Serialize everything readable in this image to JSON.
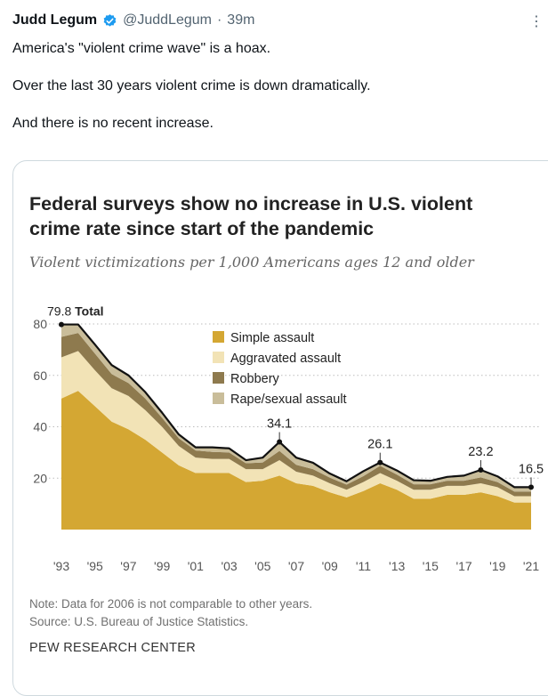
{
  "tweet": {
    "author_name": "Judd Legum",
    "handle": "@JuddLegum",
    "separator": "·",
    "time": "39m",
    "more_icon": "ellipsis-icon",
    "verified_icon": "verified-badge-icon",
    "text": [
      "America's \"violent crime wave\" is a hoax.",
      "Over the last 30 years violent crime is down dramatically.",
      "And there is no recent increase."
    ]
  },
  "card": {
    "title": "Federal surveys show no increase in U.S. violent crime rate since start of the pandemic",
    "subtitle": "Violent victimizations per 1,000 Americans ages 12 and older",
    "note": "Note: Data for 2006 is not comparable to other years.",
    "source": "Source: U.S. Bureau of Justice Statistics.",
    "brand": "PEW RESEARCH CENTER"
  },
  "chart_data": {
    "type": "area",
    "stacked": true,
    "x": [
      1993,
      1994,
      1995,
      1996,
      1997,
      1998,
      1999,
      2000,
      2001,
      2002,
      2003,
      2004,
      2005,
      2006,
      2007,
      2008,
      2009,
      2010,
      2011,
      2012,
      2013,
      2014,
      2015,
      2016,
      2017,
      2018,
      2019,
      2020,
      2021
    ],
    "series": [
      {
        "name": "Simple assault",
        "color": "#d4a733",
        "values": [
          51,
          54,
          48,
          42,
          39,
          35,
          30,
          25,
          22,
          22,
          22,
          18.5,
          19,
          21,
          18,
          17,
          14.5,
          12.5,
          15,
          18,
          15.5,
          12,
          12,
          13.5,
          13.5,
          14.5,
          13,
          10.5,
          10.5
        ]
      },
      {
        "name": "Aggravated assault",
        "color": "#f2e3b6",
        "values": [
          16,
          15.5,
          14,
          13,
          13,
          11.5,
          10,
          7.5,
          6,
          5.5,
          5.5,
          5,
          4.5,
          6,
          4.5,
          4,
          3.5,
          3,
          3.5,
          4,
          3.5,
          3.5,
          3.5,
          3.5,
          3.5,
          3.5,
          3.5,
          2.5,
          2.5
        ]
      },
      {
        "name": "Robbery",
        "color": "#8e7a4e",
        "values": [
          8,
          7,
          6.5,
          5.5,
          5,
          4.5,
          3.5,
          3,
          2.8,
          2.7,
          2.5,
          2.3,
          2.6,
          3.6,
          2.7,
          2.5,
          2.2,
          2,
          2.3,
          2.8,
          2.4,
          2.1,
          2.1,
          2,
          2,
          2.3,
          2,
          1.8,
          1.8
        ]
      },
      {
        "name": "Rape/sexual assault",
        "color": "#c9bd9a",
        "values": [
          4.8,
          3.3,
          3.5,
          3.5,
          3,
          2.5,
          2,
          1.5,
          1.2,
          1.8,
          1.6,
          1.2,
          1.9,
          3.5,
          2.8,
          2.5,
          1.6,
          1.3,
          1.9,
          1.3,
          1.6,
          1.6,
          1.4,
          1.5,
          2,
          2.9,
          2.2,
          1.7,
          1.7
        ]
      }
    ],
    "total": {
      "name": "Total",
      "color": "#111111",
      "values": [
        79.8,
        79.8,
        72,
        64,
        60,
        53.5,
        45.5,
        37,
        32,
        32,
        31.6,
        27,
        28,
        34.1,
        28,
        26,
        21.8,
        18.8,
        22.7,
        26.1,
        23,
        19.2,
        19,
        20.5,
        21,
        23.2,
        20.7,
        16.5,
        16.5
      ]
    },
    "annotations": [
      {
        "x": 1993,
        "label": "79.8",
        "suffix": "Total"
      },
      {
        "x": 2006,
        "label": "34.1"
      },
      {
        "x": 2012,
        "label": "26.1"
      },
      {
        "x": 2018,
        "label": "23.2"
      },
      {
        "x": 2021,
        "label": "16.5"
      }
    ],
    "y_ticks": [
      20,
      40,
      60,
      80
    ],
    "x_ticks": [
      "'93",
      "'95",
      "'97",
      "'99",
      "'01",
      "'03",
      "'05",
      "'07",
      "'09",
      "'11",
      "'13",
      "'15",
      "'17",
      "'19",
      "'21"
    ],
    "x_tick_years": [
      1993,
      1995,
      1997,
      1999,
      2001,
      2003,
      2005,
      2007,
      2009,
      2011,
      2013,
      2015,
      2017,
      2019,
      2021
    ],
    "ylim": [
      0,
      80
    ],
    "grid": "horizontal dotted",
    "legend_placement": "center"
  }
}
